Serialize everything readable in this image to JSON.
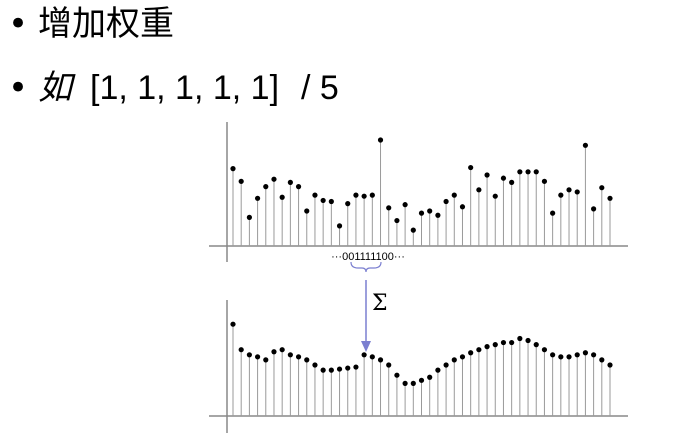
{
  "bullets": {
    "line1": {
      "marker": "•",
      "text": "增加权重"
    },
    "line2": {
      "marker": "•",
      "word": "如",
      "vector": "[1, 1, 1, 1, 1]",
      "divisor": "/ 5"
    }
  },
  "kernel_label": "···001111100···",
  "sum_symbol": "Σ",
  "colors": {
    "stem": "#9a9a9a",
    "dot": "#000000",
    "arrow": "#7b7fd0",
    "axis": "#888888"
  },
  "chart_data": [
    {
      "type": "scatter",
      "style": "stem",
      "values": [
        0.73,
        0.61,
        0.27,
        0.45,
        0.56,
        0.63,
        0.46,
        0.6,
        0.56,
        0.33,
        0.48,
        0.43,
        0.42,
        0.19,
        0.4,
        0.48,
        0.47,
        0.48,
        1.0,
        0.36,
        0.24,
        0.39,
        0.15,
        0.31,
        0.33,
        0.29,
        0.42,
        0.48,
        0.37,
        0.74,
        0.53,
        0.67,
        0.47,
        0.64,
        0.6,
        0.7,
        0.7,
        0.7,
        0.61,
        0.31,
        0.48,
        0.53,
        0.51,
        0.95,
        0.35,
        0.55,
        0.45
      ],
      "grid": false
    },
    {
      "type": "scatter",
      "style": "stem",
      "values": [
        0.9,
        0.65,
        0.6,
        0.58,
        0.55,
        0.63,
        0.65,
        0.6,
        0.58,
        0.55,
        0.5,
        0.45,
        0.45,
        0.46,
        0.47,
        0.48,
        0.6,
        0.58,
        0.55,
        0.5,
        0.4,
        0.32,
        0.32,
        0.35,
        0.38,
        0.45,
        0.5,
        0.55,
        0.58,
        0.62,
        0.65,
        0.68,
        0.7,
        0.72,
        0.72,
        0.76,
        0.74,
        0.7,
        0.65,
        0.6,
        0.58,
        0.58,
        0.6,
        0.62,
        0.6,
        0.55,
        0.5
      ],
      "grid": false
    }
  ]
}
